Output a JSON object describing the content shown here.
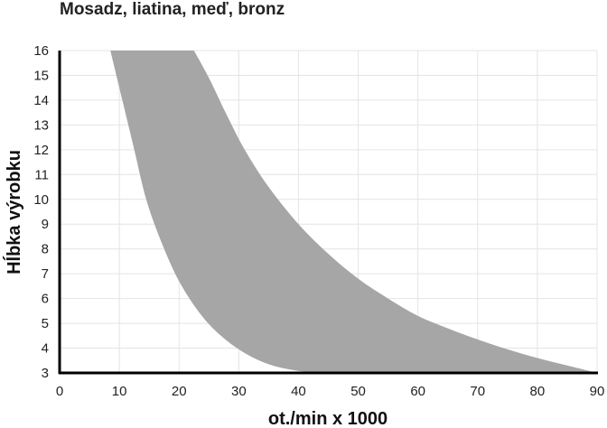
{
  "chart_data": {
    "type": "area",
    "title": "Mosadz, liatina, meď, bronz",
    "xlabel": "ot./min x 1000",
    "ylabel": "Hĺbka výrobku",
    "xlim": [
      0,
      90
    ],
    "ylim": [
      3,
      16
    ],
    "x_ticks": [
      "0",
      "10",
      "20",
      "30",
      "40",
      "50",
      "60",
      "70",
      "80",
      "90"
    ],
    "y_ticks": [
      "3",
      "4",
      "5",
      "6",
      "7",
      "8",
      "9",
      "10",
      "11",
      "12",
      "13",
      "14",
      "15",
      "16"
    ],
    "grid": true,
    "fill_color": "#a6a6a6",
    "band": {
      "lower_boundary": [
        {
          "x": 8.5,
          "y": 16
        },
        {
          "x": 10.5,
          "y": 14
        },
        {
          "x": 12.5,
          "y": 12
        },
        {
          "x": 14.5,
          "y": 10
        },
        {
          "x": 17,
          "y": 8.3
        },
        {
          "x": 20,
          "y": 6.7
        },
        {
          "x": 23.5,
          "y": 5.4
        },
        {
          "x": 27,
          "y": 4.5
        },
        {
          "x": 31,
          "y": 3.8
        },
        {
          "x": 35,
          "y": 3.35
        },
        {
          "x": 39,
          "y": 3.12
        },
        {
          "x": 43,
          "y": 3.0
        }
      ],
      "upper_boundary": [
        {
          "x": 22.5,
          "y": 16
        },
        {
          "x": 25,
          "y": 14.9
        },
        {
          "x": 28,
          "y": 13.4
        },
        {
          "x": 31,
          "y": 12.0
        },
        {
          "x": 35,
          "y": 10.5
        },
        {
          "x": 40,
          "y": 9.0
        },
        {
          "x": 45,
          "y": 7.8
        },
        {
          "x": 50,
          "y": 6.8
        },
        {
          "x": 55,
          "y": 6.0
        },
        {
          "x": 60,
          "y": 5.3
        },
        {
          "x": 65,
          "y": 4.8
        },
        {
          "x": 70,
          "y": 4.35
        },
        {
          "x": 75,
          "y": 3.95
        },
        {
          "x": 80,
          "y": 3.6
        },
        {
          "x": 85,
          "y": 3.3
        },
        {
          "x": 90,
          "y": 3.0
        }
      ]
    }
  }
}
